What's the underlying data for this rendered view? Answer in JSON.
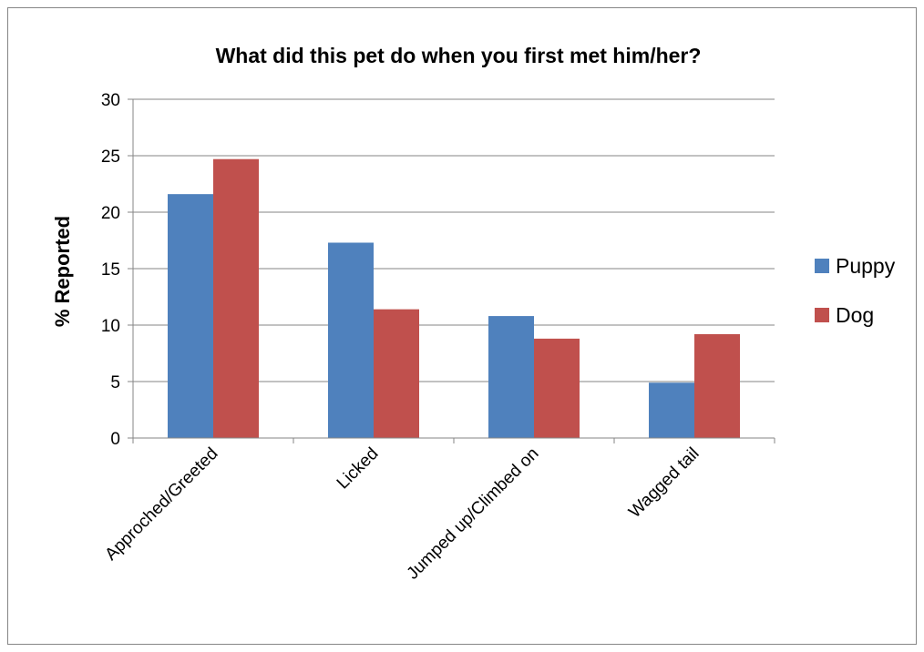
{
  "chart_data": {
    "type": "bar",
    "title": "What did this pet do when you first met him/her?",
    "xlabel": "",
    "ylabel": "% Reported",
    "ylim": [
      0,
      30
    ],
    "yticks": [
      0,
      5,
      10,
      15,
      20,
      25,
      30
    ],
    "ytick_labels": [
      "0",
      "5",
      "10",
      "15",
      "20",
      "25",
      "30"
    ],
    "categories": [
      "Approched/Greeted",
      "Licked",
      "Jumped up/Climbed on",
      "Wagged tail"
    ],
    "series": [
      {
        "name": "Puppy",
        "color": "#4F81BD",
        "values": [
          21.6,
          17.3,
          10.8,
          4.9
        ]
      },
      {
        "name": "Dog",
        "color": "#C0504D",
        "values": [
          24.7,
          11.4,
          8.8,
          9.2
        ]
      }
    ],
    "grid": true,
    "legend": "right",
    "gridline_color": "#868686"
  }
}
